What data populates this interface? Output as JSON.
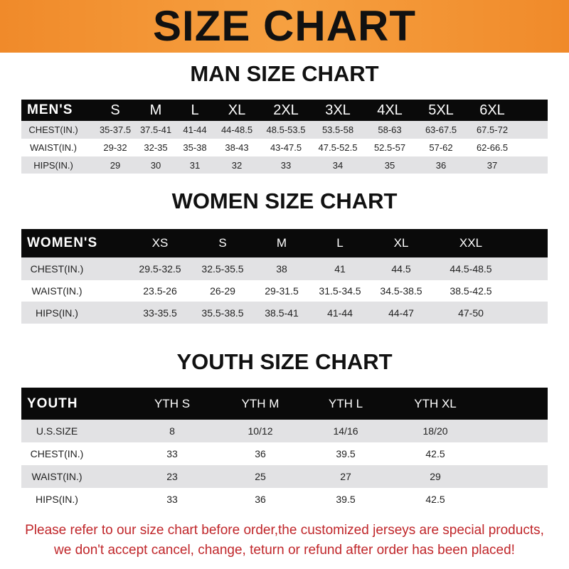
{
  "banner": {
    "title": "SIZE CHART",
    "color": "#f08a2a"
  },
  "men": {
    "title": "MAN SIZE CHART",
    "header": [
      "MEN'S",
      "S",
      "M",
      "L",
      "XL",
      "2XL",
      "3XL",
      "4XL",
      "5XL",
      "6XL"
    ],
    "rows": [
      [
        "CHEST(IN.)",
        "35-37.5",
        "37.5-41",
        "41-44",
        "44-48.5",
        "48.5-53.5",
        "53.5-58",
        "58-63",
        "63-67.5",
        "67.5-72"
      ],
      [
        "WAIST(IN.)",
        "29-32",
        "32-35",
        "35-38",
        "38-43",
        "43-47.5",
        "47.5-52.5",
        "52.5-57",
        "57-62",
        "62-66.5"
      ],
      [
        "HIPS(IN.)",
        "29",
        "30",
        "31",
        "32",
        "33",
        "34",
        "35",
        "36",
        "37"
      ]
    ]
  },
  "women": {
    "title": "WOMEN SIZE CHART",
    "header": [
      "WOMEN'S",
      "XS",
      "S",
      "M",
      "L",
      "XL",
      "XXL"
    ],
    "rows": [
      [
        "CHEST(IN.)",
        "29.5-32.5",
        "32.5-35.5",
        "38",
        "41",
        "44.5",
        "44.5-48.5"
      ],
      [
        "WAIST(IN.)",
        "23.5-26",
        "26-29",
        "29-31.5",
        "31.5-34.5",
        "34.5-38.5",
        "38.5-42.5"
      ],
      [
        "HIPS(IN.)",
        "33-35.5",
        "35.5-38.5",
        "38.5-41",
        "41-44",
        "44-47",
        "47-50"
      ]
    ]
  },
  "youth": {
    "title": "YOUTH SIZE CHART",
    "header": [
      "YOUTH",
      "YTH S",
      "YTH M",
      "YTH L",
      "YTH XL"
    ],
    "rows": [
      [
        "U.S.SIZE",
        "8",
        "10/12",
        "14/16",
        "18/20"
      ],
      [
        "CHEST(IN.)",
        "33",
        "36",
        "39.5",
        "42.5"
      ],
      [
        "WAIST(IN.)",
        "23",
        "25",
        "27",
        "29"
      ],
      [
        "HIPS(IN.)",
        "33",
        "36",
        "39.5",
        "42.5"
      ]
    ]
  },
  "footer": {
    "line1": "Please refer to our size chart before order,the customized jerseys are special products,",
    "line2": "we don't accept cancel, change, teturn or refund after order has been placed!",
    "color": "#c0262a"
  }
}
